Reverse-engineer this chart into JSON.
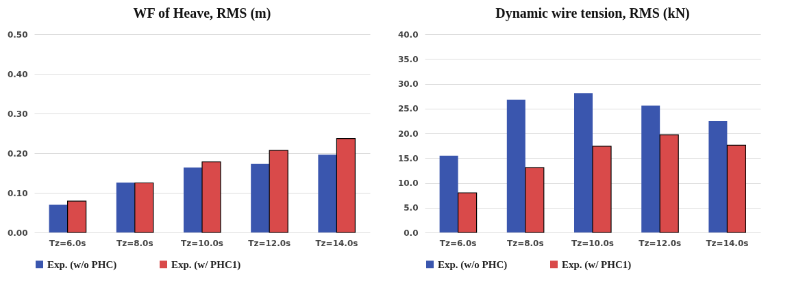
{
  "chart_data": [
    {
      "type": "bar",
      "title": "WF of Heave, RMS (m)",
      "categories": [
        "Tz=6.0s",
        "Tz=8.0s",
        "Tz=10.0s",
        "Tz=12.0s",
        "Tz=14.0s"
      ],
      "series": [
        {
          "name": "Exp. (w/o PHC)",
          "color": "#3a56ae",
          "values": [
            0.07,
            0.126,
            0.164,
            0.173,
            0.196
          ]
        },
        {
          "name": "Exp. (w/ PHC1)",
          "color": "#d94a4a",
          "values": [
            0.079,
            0.125,
            0.178,
            0.207,
            0.237
          ]
        }
      ],
      "ylim": [
        0,
        0.5
      ],
      "yticks": [
        {
          "value": 0,
          "label": "0.00"
        },
        {
          "value": 0.1,
          "label": "0.10"
        },
        {
          "value": 0.2,
          "label": "0.20"
        },
        {
          "value": 0.3,
          "label": "0.30"
        },
        {
          "value": 0.4,
          "label": "0.40"
        },
        {
          "value": 0.5,
          "label": "0.50"
        }
      ],
      "grid": "y",
      "legend": "bottom"
    },
    {
      "type": "bar",
      "title": "Dynamic wire tension, RMS (kN)",
      "categories": [
        "Tz=6.0s",
        "Tz=8.0s",
        "Tz=10.0s",
        "Tz=12.0s",
        "Tz=14.0s"
      ],
      "series": [
        {
          "name": "Exp. (w/o PHC)",
          "color": "#3a56ae",
          "values": [
            15.5,
            26.8,
            28.1,
            25.6,
            22.5
          ]
        },
        {
          "name": "Exp. (w/ PHC1)",
          "color": "#d94a4a",
          "values": [
            8.0,
            13.1,
            17.4,
            19.7,
            17.6
          ]
        }
      ],
      "ylim": [
        0,
        40
      ],
      "yticks": [
        {
          "value": 0,
          "label": "0.0"
        },
        {
          "value": 5,
          "label": "5.0"
        },
        {
          "value": 10,
          "label": "10.0"
        },
        {
          "value": 15,
          "label": "15.0"
        },
        {
          "value": 20,
          "label": "20.0"
        },
        {
          "value": 25,
          "label": "25.0"
        },
        {
          "value": 30,
          "label": "30.0"
        },
        {
          "value": 35,
          "label": "35.0"
        },
        {
          "value": 40,
          "label": "40.0"
        }
      ],
      "grid": "y",
      "legend": "bottom"
    }
  ]
}
